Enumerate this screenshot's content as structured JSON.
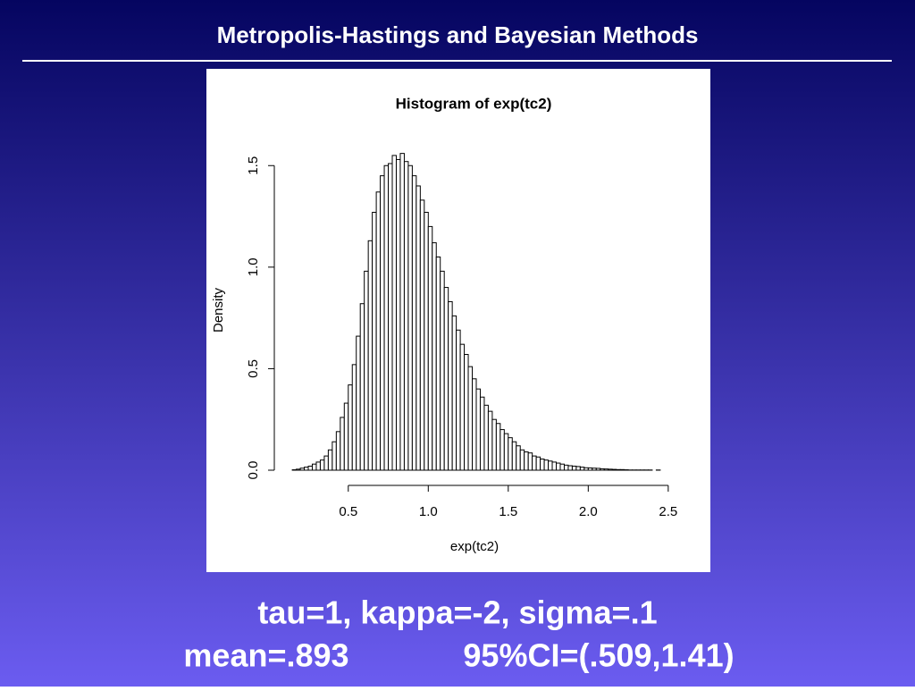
{
  "slide": {
    "title": "Metropolis-Hastings and Bayesian Methods",
    "caption": {
      "line1": "tau=1, kappa=-2, sigma=.1",
      "mean": "mean=.893",
      "ci": "95%CI=(.509,1.41)"
    }
  },
  "chart_data": {
    "type": "histogram",
    "title": "Histogram of exp(tc2)",
    "x_label": "exp(tc2)",
    "y_label": "Density",
    "bins": [
      0.15,
      0.175,
      0.2,
      0.225,
      0.25,
      0.275,
      0.3,
      0.325,
      0.35,
      0.375,
      0.4,
      0.425,
      0.45,
      0.475,
      0.5,
      0.525,
      0.55,
      0.575,
      0.6,
      0.625,
      0.65,
      0.675,
      0.7,
      0.725,
      0.75,
      0.775,
      0.8,
      0.825,
      0.85,
      0.875,
      0.9,
      0.925,
      0.95,
      0.975,
      1,
      1.025,
      1.05,
      1.075,
      1.1,
      1.125,
      1.15,
      1.175,
      1.2,
      1.225,
      1.25,
      1.275,
      1.3,
      1.325,
      1.35,
      1.375,
      1.4,
      1.425,
      1.45,
      1.475,
      1.5,
      1.525,
      1.55,
      1.575,
      1.6,
      1.625,
      1.65,
      1.675,
      1.7,
      1.725,
      1.75,
      1.775,
      1.8,
      1.825,
      1.85,
      1.875,
      1.9,
      1.925,
      1.95,
      1.975,
      2,
      2.025,
      2.05,
      2.075,
      2.1,
      2.125,
      2.15,
      2.175,
      2.2,
      2.225,
      2.25,
      2.275,
      2.3,
      2.325,
      2.35,
      2.375,
      2.4,
      2.425,
      2.45
    ],
    "values": [
      0.002,
      0.005,
      0.01,
      0.015,
      0.02,
      0.03,
      0.04,
      0.05,
      0.07,
      0.1,
      0.14,
      0.19,
      0.26,
      0.33,
      0.42,
      0.52,
      0.66,
      0.82,
      0.98,
      1.13,
      1.27,
      1.37,
      1.45,
      1.5,
      1.51,
      1.55,
      1.53,
      1.56,
      1.52,
      1.5,
      1.45,
      1.4,
      1.33,
      1.27,
      1.2,
      1.12,
      1.05,
      0.98,
      0.9,
      0.83,
      0.76,
      0.69,
      0.62,
      0.57,
      0.51,
      0.45,
      0.4,
      0.36,
      0.32,
      0.29,
      0.25,
      0.23,
      0.2,
      0.18,
      0.16,
      0.14,
      0.12,
      0.1,
      0.09,
      0.085,
      0.07,
      0.065,
      0.055,
      0.05,
      0.045,
      0.04,
      0.035,
      0.03,
      0.025,
      0.022,
      0.02,
      0.018,
      0.015,
      0.012,
      0.011,
      0.01,
      0.009,
      0.007,
      0.006,
      0.005,
      0.004,
      0.003,
      0.003,
      0.002,
      0.001,
      0.001,
      0.001,
      0.001,
      0.001,
      0.001,
      0,
      0.001
    ],
    "color": "#ffffff",
    "xlim": [
      0.06,
      2.54
    ],
    "ylim": [
      0,
      1.62
    ],
    "xticks": [
      0.5,
      {
        "value": 1,
        "label": "1.0"
      },
      1.5,
      {
        "value": 2,
        "label": "2.0"
      },
      2.5
    ],
    "yticks": [
      {
        "value": 0,
        "label": "0.0"
      },
      0.5,
      {
        "value": 1,
        "label": "1.0"
      },
      1.5
    ]
  }
}
